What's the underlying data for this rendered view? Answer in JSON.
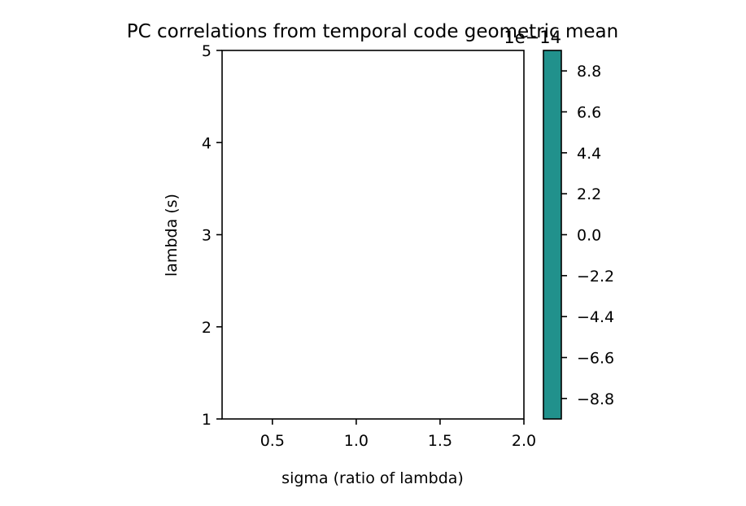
{
  "chart_data": {
    "type": "heatmap",
    "title": "PC correlations from temporal code geometric mean",
    "xlabel": "sigma (ratio of lambda)",
    "ylabel": "lambda (s)",
    "xlim": [
      0.2,
      2.0
    ],
    "ylim": [
      1,
      5
    ],
    "xticks": [
      0.5,
      1.0,
      1.5,
      2.0
    ],
    "xtick_labels": [
      "0.5",
      "1.0",
      "1.5",
      "2.0"
    ],
    "yticks": [
      1,
      2,
      3,
      4,
      5
    ],
    "ytick_labels": [
      "1",
      "2",
      "3",
      "4",
      "5"
    ],
    "values": [],
    "colorbar": {
      "color": "#21918c",
      "range": [
        -9.9,
        9.9
      ],
      "ticks": [
        8.8,
        6.6,
        4.4,
        2.2,
        0.0,
        -2.2,
        -4.4,
        -6.6,
        -8.8
      ],
      "tick_labels": [
        "8.8",
        "6.6",
        "4.4",
        "2.2",
        "0.0",
        "−2.2",
        "−4.4",
        "−6.6",
        "−8.8"
      ],
      "offset_text": "1e−14"
    },
    "grid": false
  }
}
